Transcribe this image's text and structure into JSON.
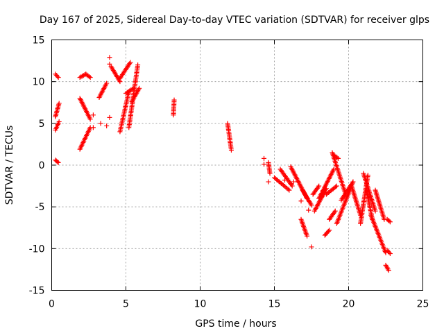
{
  "chart_data": {
    "type": "scatter",
    "title": "Day 167 of 2025, Sidereal Day-to-day VTEC variation (SDTVAR) for receiver glps",
    "xlabel": "GPS time / hours",
    "ylabel": "SDTVAR / TECUs",
    "xlim": [
      0,
      25
    ],
    "ylim": [
      -15,
      15
    ],
    "xticks": [
      0,
      5,
      10,
      15,
      20,
      25
    ],
    "yticks": [
      -15,
      -10,
      -5,
      0,
      5,
      10,
      15
    ],
    "grid": true,
    "marker": "+",
    "color": "#ff0000",
    "series": [
      {
        "name": "SDTVAR",
        "segments": [
          {
            "x": [
              0.25,
              0.45
            ],
            "y": [
              10.9,
              10.5
            ]
          },
          {
            "x": [
              0.25,
              0.5
            ],
            "y": [
              5.8,
              7.4
            ]
          },
          {
            "x": [
              0.25,
              0.5
            ],
            "y": [
              4.2,
              5.2
            ]
          },
          {
            "x": [
              0.25,
              0.45
            ],
            "y": [
              0.6,
              0.3
            ]
          },
          {
            "x": [
              1.9,
              2.3,
              2.6
            ],
            "y": [
              10.5,
              10.9,
              10.5
            ]
          },
          {
            "x": [
              1.9,
              2.6
            ],
            "y": [
              8.0,
              5.5
            ]
          },
          {
            "x": [
              1.9,
              2.6
            ],
            "y": [
              1.9,
              4.5
            ]
          },
          {
            "x": [
              3.2,
              3.7
            ],
            "y": [
              8.1,
              9.8
            ]
          },
          {
            "x": [
              4.0,
              4.6
            ],
            "y": [
              11.8,
              10.0
            ]
          },
          {
            "x": [
              4.6,
              5.3
            ],
            "y": [
              10.4,
              12.3
            ]
          },
          {
            "x": [
              5.0,
              5.5
            ],
            "y": [
              8.6,
              9.2
            ]
          },
          {
            "x": [
              4.6,
              5.2
            ],
            "y": [
              4.0,
              8.8
            ]
          },
          {
            "x": [
              5.2,
              5.8
            ],
            "y": [
              4.5,
              12.0
            ]
          },
          {
            "x": [
              5.4,
              5.9
            ],
            "y": [
              7.6,
              9.2
            ]
          },
          {
            "x": [
              8.2,
              8.25
            ],
            "y": [
              6.0,
              7.8
            ]
          },
          {
            "x": [
              11.85,
              12.1
            ],
            "y": [
              5.0,
              1.8
            ]
          },
          {
            "x": [
              14.6,
              14.7
            ],
            "y": [
              0.3,
              -1.0
            ]
          },
          {
            "x": [
              15.0,
              16.0
            ],
            "y": [
              -1.5,
              -3.0
            ]
          },
          {
            "x": [
              15.4,
              16.2
            ],
            "y": [
              -0.5,
              -2.5
            ]
          },
          {
            "x": [
              16.1,
              17.2
            ],
            "y": [
              -0.2,
              -4.0
            ]
          },
          {
            "x": [
              16.9,
              17.5
            ],
            "y": [
              -3.0,
              -4.8
            ]
          },
          {
            "x": [
              16.8,
              17.2
            ],
            "y": [
              -6.5,
              -8.5
            ]
          },
          {
            "x": [
              17.6,
              18.0
            ],
            "y": [
              -3.5,
              -2.5
            ]
          },
          {
            "x": [
              17.7,
              18.5
            ],
            "y": [
              -5.5,
              -2.8
            ]
          },
          {
            "x": [
              18.4,
              18.7
            ],
            "y": [
              -8.4,
              -7.8
            ]
          },
          {
            "x": [
              18.0,
              19.0
            ],
            "y": [
              -4.0,
              -0.5
            ]
          },
          {
            "x": [
              18.5,
              19.2
            ],
            "y": [
              -3.5,
              -2.5
            ]
          },
          {
            "x": [
              18.7,
              19.1
            ],
            "y": [
              -6.5,
              -5.5
            ]
          },
          {
            "x": [
              19.0,
              19.3
            ],
            "y": [
              1.2,
              0.8
            ]
          },
          {
            "x": [
              18.9,
              19.8
            ],
            "y": [
              1.5,
              -3.5
            ]
          },
          {
            "x": [
              19.2,
              20.3
            ],
            "y": [
              -7.0,
              -2.0
            ]
          },
          {
            "x": [
              19.5,
              20.3
            ],
            "y": [
              -4.2,
              -2.0
            ]
          },
          {
            "x": [
              20.2,
              20.8
            ],
            "y": [
              -2.5,
              -6.0
            ]
          },
          {
            "x": [
              20.8,
              21.3
            ],
            "y": [
              -7.0,
              -1.2
            ]
          },
          {
            "x": [
              21.0,
              21.8
            ],
            "y": [
              -1.0,
              -5.5
            ]
          },
          {
            "x": [
              21.2,
              21.6
            ],
            "y": [
              -3.0,
              -6.5
            ]
          },
          {
            "x": [
              21.5,
              22.5
            ],
            "y": [
              -6.0,
              -10.5
            ]
          },
          {
            "x": [
              21.8,
              22.4
            ],
            "y": [
              -3.0,
              -6.5
            ]
          },
          {
            "x": [
              22.5,
              22.7
            ],
            "y": [
              -12.0,
              -12.6
            ]
          },
          {
            "x": [
              22.6,
              22.8
            ],
            "y": [
              -10.2,
              -10.6
            ]
          },
          {
            "x": [
              22.6,
              22.8
            ],
            "y": [
              -6.5,
              -6.8
            ]
          }
        ],
        "points": [
          {
            "x": 3.9,
            "y": 12.9
          },
          {
            "x": 3.9,
            "y": 12.1
          },
          {
            "x": 2.8,
            "y": 6.0
          },
          {
            "x": 3.3,
            "y": 5.0
          },
          {
            "x": 3.7,
            "y": 4.7
          },
          {
            "x": 3.9,
            "y": 5.7
          },
          {
            "x": 2.8,
            "y": 4.5
          },
          {
            "x": 14.3,
            "y": 0.8
          },
          {
            "x": 14.3,
            "y": 0.1
          },
          {
            "x": 14.6,
            "y": -2.0
          },
          {
            "x": 15.7,
            "y": -1.8
          },
          {
            "x": 16.3,
            "y": -2.0
          },
          {
            "x": 17.5,
            "y": -9.8
          },
          {
            "x": 17.3,
            "y": -5.4
          },
          {
            "x": 18.2,
            "y": -3.8
          },
          {
            "x": 16.8,
            "y": -4.3
          }
        ]
      }
    ]
  }
}
